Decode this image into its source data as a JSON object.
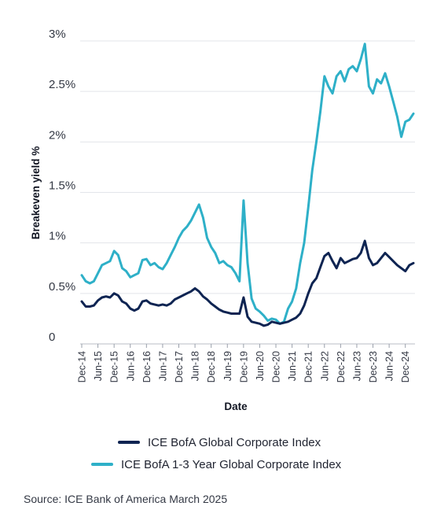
{
  "chart_data": {
    "type": "line",
    "xlabel": "Date",
    "ylabel": "Breakeven yield %",
    "ylim": [
      0,
      3
    ],
    "yticks": [
      "0",
      "0.5%",
      "1%",
      "1.5%",
      "2%",
      "2.5%",
      "3%"
    ],
    "yticks_values": [
      0,
      0.5,
      1,
      1.5,
      2,
      2.5,
      3
    ],
    "x_tick_labels": [
      "Dec-14",
      "Jun-15",
      "Dec-15",
      "Jun-16",
      "Dec-16",
      "Jun-17",
      "Dec-17",
      "Jun-18",
      "Dec-18",
      "Jun-19",
      "Dec-19",
      "Jun-20",
      "Dec-20",
      "Jun-21",
      "Dec-21",
      "Jun-22",
      "Dec-22",
      "Jun-23",
      "Dec-23",
      "Jun-24",
      "Dec-24"
    ],
    "grid": true,
    "legend_position": "bottom",
    "series": [
      {
        "name": "ICE BofA Global Corporate Index",
        "color": "#0e2452",
        "points": [
          [
            0,
            0.42
          ],
          [
            1,
            0.37
          ],
          [
            2,
            0.37
          ],
          [
            3,
            0.38
          ],
          [
            4,
            0.43
          ],
          [
            5,
            0.46
          ],
          [
            6,
            0.47
          ],
          [
            7,
            0.46
          ],
          [
            8,
            0.5
          ],
          [
            9,
            0.48
          ],
          [
            10,
            0.42
          ],
          [
            11,
            0.4
          ],
          [
            12,
            0.35
          ],
          [
            13,
            0.33
          ],
          [
            14,
            0.35
          ],
          [
            15,
            0.42
          ],
          [
            16,
            0.43
          ],
          [
            17,
            0.4
          ],
          [
            18,
            0.39
          ],
          [
            19,
            0.38
          ],
          [
            20,
            0.39
          ],
          [
            21,
            0.38
          ],
          [
            22,
            0.4
          ],
          [
            23,
            0.44
          ],
          [
            24,
            0.46
          ],
          [
            25,
            0.48
          ],
          [
            26,
            0.5
          ],
          [
            27,
            0.52
          ],
          [
            28,
            0.55
          ],
          [
            29,
            0.52
          ],
          [
            30,
            0.47
          ],
          [
            31,
            0.44
          ],
          [
            32,
            0.4
          ],
          [
            33,
            0.37
          ],
          [
            34,
            0.34
          ],
          [
            35,
            0.32
          ],
          [
            36,
            0.31
          ],
          [
            37,
            0.3
          ],
          [
            38,
            0.3
          ],
          [
            39,
            0.3
          ],
          [
            40,
            0.46
          ],
          [
            41,
            0.27
          ],
          [
            42,
            0.22
          ],
          [
            43,
            0.21
          ],
          [
            44,
            0.2
          ],
          [
            45,
            0.18
          ],
          [
            46,
            0.19
          ],
          [
            47,
            0.22
          ],
          [
            48,
            0.21
          ],
          [
            49,
            0.2
          ],
          [
            50,
            0.21
          ],
          [
            51,
            0.22
          ],
          [
            52,
            0.24
          ],
          [
            53,
            0.26
          ],
          [
            54,
            0.3
          ],
          [
            55,
            0.38
          ],
          [
            56,
            0.5
          ],
          [
            57,
            0.6
          ],
          [
            58,
            0.65
          ],
          [
            59,
            0.76
          ],
          [
            60,
            0.87
          ],
          [
            61,
            0.9
          ],
          [
            62,
            0.82
          ],
          [
            63,
            0.75
          ],
          [
            64,
            0.85
          ],
          [
            65,
            0.8
          ],
          [
            66,
            0.82
          ],
          [
            67,
            0.84
          ],
          [
            68,
            0.85
          ],
          [
            69,
            0.9
          ],
          [
            70,
            1.02
          ],
          [
            71,
            0.85
          ],
          [
            72,
            0.78
          ],
          [
            73,
            0.8
          ],
          [
            74,
            0.85
          ],
          [
            75,
            0.9
          ],
          [
            76,
            0.86
          ],
          [
            77,
            0.82
          ],
          [
            78,
            0.78
          ],
          [
            79,
            0.75
          ],
          [
            80,
            0.72
          ],
          [
            81,
            0.78
          ],
          [
            82,
            0.8
          ]
        ]
      },
      {
        "name": "ICE BofA 1-3 Year Global Corporate Index",
        "color": "#2eb0c8",
        "points": [
          [
            0,
            0.68
          ],
          [
            1,
            0.62
          ],
          [
            2,
            0.6
          ],
          [
            3,
            0.62
          ],
          [
            4,
            0.7
          ],
          [
            5,
            0.78
          ],
          [
            6,
            0.8
          ],
          [
            7,
            0.82
          ],
          [
            8,
            0.92
          ],
          [
            9,
            0.88
          ],
          [
            10,
            0.75
          ],
          [
            11,
            0.72
          ],
          [
            12,
            0.66
          ],
          [
            13,
            0.68
          ],
          [
            14,
            0.7
          ],
          [
            15,
            0.83
          ],
          [
            16,
            0.84
          ],
          [
            17,
            0.78
          ],
          [
            18,
            0.8
          ],
          [
            19,
            0.76
          ],
          [
            20,
            0.74
          ],
          [
            21,
            0.8
          ],
          [
            22,
            0.88
          ],
          [
            23,
            0.96
          ],
          [
            24,
            1.05
          ],
          [
            25,
            1.12
          ],
          [
            26,
            1.16
          ],
          [
            27,
            1.22
          ],
          [
            28,
            1.3
          ],
          [
            29,
            1.38
          ],
          [
            30,
            1.25
          ],
          [
            31,
            1.05
          ],
          [
            32,
            0.96
          ],
          [
            33,
            0.9
          ],
          [
            34,
            0.8
          ],
          [
            35,
            0.82
          ],
          [
            36,
            0.78
          ],
          [
            37,
            0.76
          ],
          [
            38,
            0.7
          ],
          [
            39,
            0.62
          ],
          [
            40,
            1.42
          ],
          [
            41,
            0.8
          ],
          [
            42,
            0.45
          ],
          [
            43,
            0.35
          ],
          [
            44,
            0.32
          ],
          [
            45,
            0.28
          ],
          [
            46,
            0.23
          ],
          [
            47,
            0.25
          ],
          [
            48,
            0.24
          ],
          [
            49,
            0.2
          ],
          [
            50,
            0.22
          ],
          [
            51,
            0.35
          ],
          [
            52,
            0.42
          ],
          [
            53,
            0.55
          ],
          [
            54,
            0.8
          ],
          [
            55,
            1.0
          ],
          [
            56,
            1.35
          ],
          [
            57,
            1.72
          ],
          [
            58,
            2.0
          ],
          [
            59,
            2.3
          ],
          [
            60,
            2.65
          ],
          [
            61,
            2.55
          ],
          [
            62,
            2.48
          ],
          [
            63,
            2.65
          ],
          [
            64,
            2.7
          ],
          [
            65,
            2.6
          ],
          [
            66,
            2.72
          ],
          [
            67,
            2.75
          ],
          [
            68,
            2.7
          ],
          [
            69,
            2.82
          ],
          [
            70,
            2.97
          ],
          [
            71,
            2.55
          ],
          [
            72,
            2.48
          ],
          [
            73,
            2.62
          ],
          [
            74,
            2.58
          ],
          [
            75,
            2.68
          ],
          [
            76,
            2.55
          ],
          [
            77,
            2.4
          ],
          [
            78,
            2.25
          ],
          [
            79,
            2.05
          ],
          [
            80,
            2.2
          ],
          [
            81,
            2.22
          ],
          [
            82,
            2.28
          ]
        ]
      }
    ]
  },
  "source": "Source: ICE Bank of America March 2025"
}
